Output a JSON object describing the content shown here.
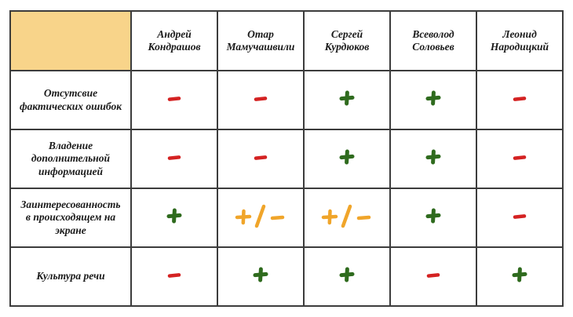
{
  "colors": {
    "plus": "#2f6b1e",
    "minus": "#d42222",
    "mixed": "#f0a52a",
    "corner": "#f8d48a",
    "border": "#3c3c3c"
  },
  "people": [
    {
      "first": "Андрей",
      "last": "Кондрашов"
    },
    {
      "first": "Отар",
      "last": "Мамучашвили"
    },
    {
      "first": "Сергей",
      "last": "Курдюков"
    },
    {
      "first": "Всеволод",
      "last": "Соловьев"
    },
    {
      "first": "Леонид",
      "last": "Народицкий"
    }
  ],
  "criteria": [
    {
      "lines": [
        "Отсутсвие",
        "фактических ошибок"
      ],
      "marks": [
        "minus",
        "minus",
        "plus",
        "plus",
        "minus"
      ]
    },
    {
      "lines": [
        "Владение",
        "дополнительной",
        "информацией"
      ],
      "marks": [
        "minus",
        "minus",
        "plus",
        "plus",
        "minus"
      ]
    },
    {
      "lines": [
        "Заинтересованность",
        "в происходящем на",
        "экране"
      ],
      "marks": [
        "plus",
        "plus-slash-minus",
        "plus-slash-minus",
        "plus",
        "minus"
      ]
    },
    {
      "lines": [
        "Культура речи"
      ],
      "marks": [
        "minus",
        "plus",
        "plus",
        "minus",
        "plus"
      ]
    }
  ]
}
